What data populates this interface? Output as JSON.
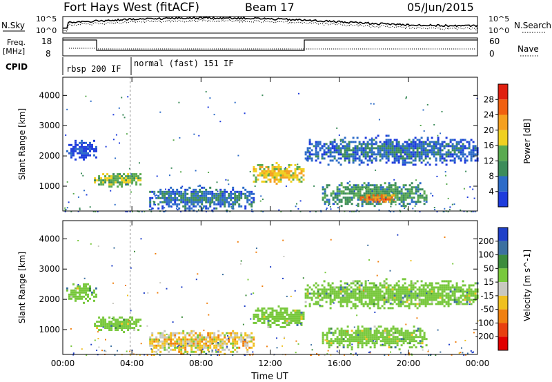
{
  "header": {
    "station": "Fort Hays West (fitACF)",
    "beam": "Beam 17",
    "date": "05/Jun/2015"
  },
  "top_panels": {
    "nsky_label": "N.Sky",
    "nsky_ticks": [
      "10^5",
      "10^0"
    ],
    "nsearch_label": "N.Search",
    "nsearch_ticks": [
      "10^5",
      "10^0"
    ],
    "freq_label": "Freq.",
    "freq_unit": "[MHz]",
    "freq_ticks": [
      "18",
      "8"
    ],
    "nave_label": "Nave",
    "nave_ticks": [
      "60",
      "0"
    ],
    "cpid_label": "CPID",
    "cpid_segments": [
      {
        "label": "rbsp 200 IF",
        "start_h": 0,
        "end_h": 4
      },
      {
        "label": "normal (fast) 151 IF",
        "start_h": 4,
        "end_h": 24
      }
    ]
  },
  "colors": {
    "power": [
      "#1e3cdc",
      "#2d6cc8",
      "#3c8c5a",
      "#5aaa50",
      "#f0d020",
      "#f5a020",
      "#f06010",
      "#e02010"
    ],
    "velocity": [
      "#2040c8",
      "#3c70a0",
      "#3c8c3c",
      "#78c83c",
      "#c8c8c0",
      "#f0c020",
      "#f08010",
      "#e84010",
      "#e00000"
    ]
  },
  "chart_data": [
    {
      "type": "heatmap",
      "name": "power",
      "xlabel": "",
      "ylabel": "Slant Range [km]",
      "xlim": [
        0,
        24
      ],
      "ylim": [
        180,
        4600
      ],
      "yticks": [
        "1000",
        "2000",
        "3000",
        "4000"
      ],
      "colorbar_label": "Power [dB]",
      "colorbar_ticks": [
        "4",
        "8",
        "12",
        "16",
        "20",
        "24",
        "28"
      ],
      "regions": [
        {
          "t0": 0.2,
          "t1": 1.9,
          "r0": 1900,
          "r1": 2600,
          "value": 6
        },
        {
          "t0": 1.8,
          "t1": 4.5,
          "r0": 950,
          "r1": 1500,
          "value": 17
        },
        {
          "t0": 5.0,
          "t1": 11.0,
          "r0": 200,
          "r1": 1050,
          "value": 10
        },
        {
          "t0": 11.0,
          "t1": 13.9,
          "r0": 1100,
          "r1": 1800,
          "value": 22
        },
        {
          "t0": 14.0,
          "t1": 24.0,
          "r0": 1700,
          "r1": 2700,
          "value": 9
        },
        {
          "t0": 15.0,
          "t1": 21.0,
          "r0": 350,
          "r1": 1200,
          "value": 14
        },
        {
          "t0": 17.2,
          "t1": 19.2,
          "r0": 450,
          "r1": 800,
          "value": 27
        }
      ]
    },
    {
      "type": "heatmap",
      "name": "velocity",
      "xlabel": "Time UT",
      "ylabel": "Slant Range [km]",
      "xlim": [
        0,
        24
      ],
      "ylim": [
        180,
        4600
      ],
      "xticks": [
        "00:00",
        "04:00",
        "08:00",
        "12:00",
        "16:00",
        "20:00",
        "00:00"
      ],
      "yticks": [
        "1000",
        "2000",
        "3000",
        "4000"
      ],
      "colorbar_label": "Velocity [m s^-1]",
      "colorbar_ticks": [
        "200",
        "100",
        "50",
        "15",
        "-15",
        "-50",
        "-100",
        "-200"
      ],
      "regions": [
        {
          "t0": 0.2,
          "t1": 1.9,
          "r0": 1900,
          "r1": 2600,
          "value": 0
        },
        {
          "t0": 1.8,
          "t1": 4.5,
          "r0": 950,
          "r1": 1500,
          "value": 0
        },
        {
          "t0": 5.0,
          "t1": 11.0,
          "r0": 200,
          "r1": 1050,
          "value": -60
        },
        {
          "t0": 11.0,
          "t1": 13.9,
          "r0": 1100,
          "r1": 1800,
          "value": 0
        },
        {
          "t0": 14.0,
          "t1": 24.0,
          "r0": 1700,
          "r1": 2700,
          "value": 0
        },
        {
          "t0": 15.0,
          "t1": 21.0,
          "r0": 350,
          "r1": 1200,
          "value": 0
        }
      ]
    }
  ]
}
